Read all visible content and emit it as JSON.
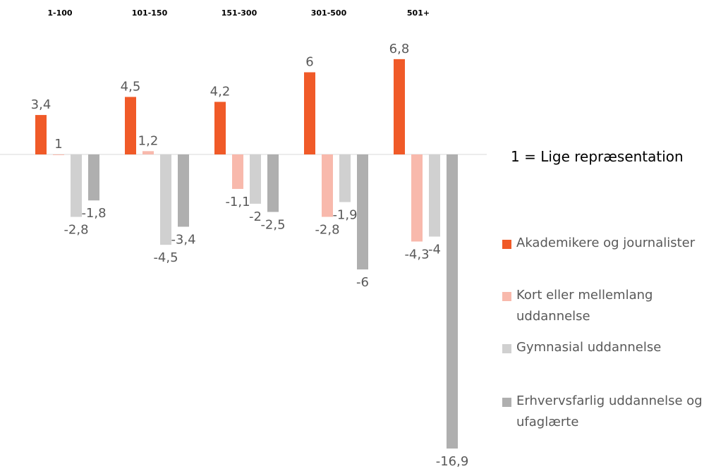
{
  "chart_data": {
    "type": "bar",
    "title": "",
    "xlabel": "",
    "ylabel": "",
    "categories": [
      "1-100",
      "101-150",
      "151-300",
      "301-500",
      "501+"
    ],
    "series": [
      {
        "name": "Akademikere og journalister",
        "color": "#F05A28",
        "values": [
          3.4,
          4.5,
          4.2,
          6,
          6.8
        ],
        "labels": [
          "3,4",
          "4,5",
          "4,2",
          "6",
          "6,8"
        ]
      },
      {
        "name": "Kort eller mellemlang uddannelse",
        "color": "#F8B9AC",
        "values": [
          1,
          1.2,
          -1.1,
          -2.8,
          -4.3
        ],
        "labels": [
          "1",
          "1,2",
          "-1,1",
          "-2,8",
          "-4,3"
        ]
      },
      {
        "name": "Gymnasial uddannelse",
        "color": "#D0D0D0",
        "values": [
          -2.8,
          -4.5,
          -2,
          -1.9,
          -4
        ],
        "labels": [
          "-2,8",
          "-4,5",
          "-2",
          "-1,9",
          "-4"
        ]
      },
      {
        "name": "Erhvervsfarlig uddannelse og ufaglærte",
        "color": "#AFAFAF",
        "values": [
          -1.8,
          -3.4,
          -2.5,
          -6,
          -16.9
        ],
        "labels": [
          "-1,8",
          "-3,4",
          "-2,5",
          "-6",
          "-16,9"
        ]
      }
    ],
    "baseline": 1,
    "baseline_note": "1 = Lige repræsentation",
    "ylim": [
      -16.9,
      6.8
    ],
    "grid": false,
    "legend_position": "right"
  }
}
